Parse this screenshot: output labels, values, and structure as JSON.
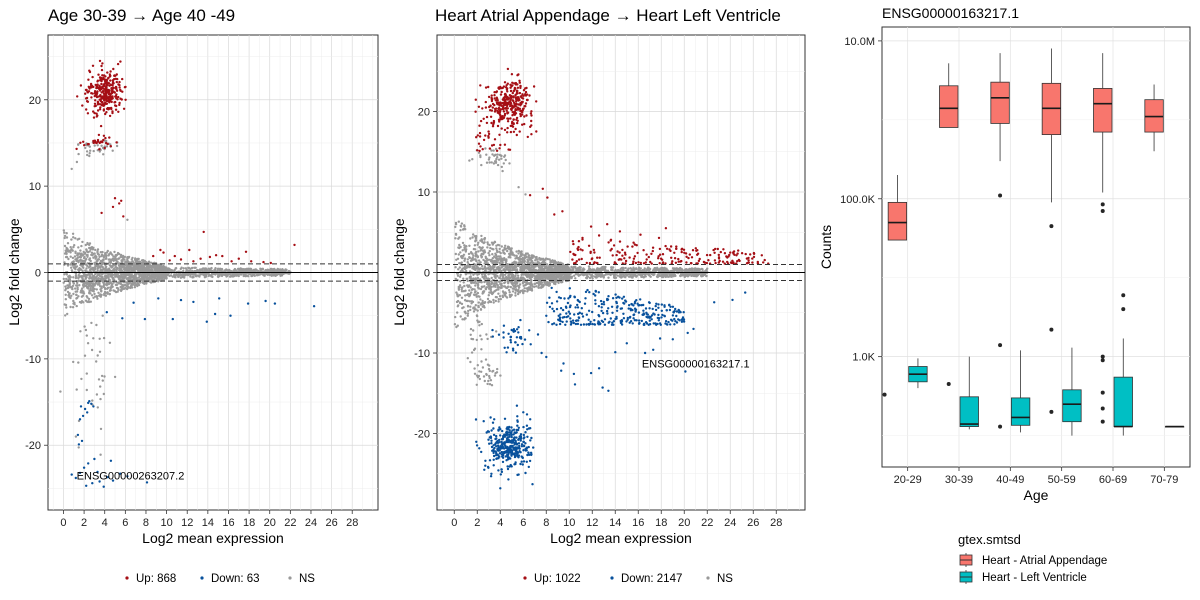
{
  "chart_data": [
    {
      "type": "scatter",
      "title": "Age 30-39 → Age 40 -49",
      "xlabel": "Log2 mean expression",
      "ylabel": "Log2 fold change",
      "xlim": [
        -1.5,
        30.5
      ],
      "ylim": [
        -27.5,
        27.5
      ],
      "xticks": [
        0,
        2,
        4,
        6,
        8,
        10,
        12,
        14,
        16,
        18,
        20,
        22,
        24,
        26,
        28
      ],
      "yticks": [
        -20,
        -10,
        0,
        10,
        20
      ],
      "grid": true,
      "hlines": {
        "solid": 0,
        "dashed": [
          -1,
          1
        ]
      },
      "colors": {
        "up": "#a50f15",
        "down": "#08519c",
        "ns": "#999999"
      },
      "legend": {
        "position": "bottom",
        "labels": [
          "Up: 868",
          "Down: 63",
          "NS"
        ]
      },
      "annotations": [
        {
          "text": "ENSG00000263207.2",
          "x": 6.5,
          "y": -23.5
        }
      ],
      "series": [
        {
          "name": "Up: 868",
          "clusters": [
            {
              "kind": "cluster",
              "cx": 4.0,
              "cy": 20.8,
              "sx": 0.85,
              "sy": 1.3,
              "n": 300
            },
            {
              "kind": "cluster",
              "cx": 3.5,
              "cy": 15.2,
              "sx": 1.0,
              "sy": 0.5,
              "n": 30
            }
          ],
          "points": [
            [
              5.0,
              8.6
            ],
            [
              5.6,
              8.3
            ],
            [
              5.4,
              8.0
            ],
            [
              3.7,
              6.9
            ],
            [
              5.8,
              6.5
            ],
            [
              4.8,
              7.6
            ],
            [
              9.7,
              2.3
            ],
            [
              9.4,
              2.6
            ],
            [
              10.8,
              1.9
            ],
            [
              12.2,
              2.6
            ],
            [
              13.3,
              1.6
            ],
            [
              14.2,
              1.8
            ],
            [
              14.8,
              2.0
            ],
            [
              13.6,
              4.7
            ],
            [
              15.4,
              1.9
            ],
            [
              16.3,
              1.3
            ],
            [
              17.0,
              1.6
            ],
            [
              17.7,
              2.4
            ],
            [
              18.2,
              1.3
            ],
            [
              19.4,
              1.2
            ],
            [
              20.1,
              1.1
            ],
            [
              22.4,
              3.2
            ],
            [
              12.6,
              1.3
            ],
            [
              11.4,
              1.5
            ],
            [
              8.7,
              1.9
            ],
            [
              10.3,
              1.4
            ]
          ]
        },
        {
          "name": "Down: 63",
          "clusters": [],
          "points": [
            [
              1.7,
              -15.5
            ],
            [
              2.1,
              -15.8
            ],
            [
              2.3,
              -16.2
            ],
            [
              2.7,
              -15.2
            ],
            [
              2.9,
              -15.5
            ],
            [
              2.5,
              -14.9
            ],
            [
              1.9,
              -16.6
            ],
            [
              2.4,
              -15.1
            ],
            [
              1.6,
              -17.0
            ],
            [
              1.4,
              -18.8
            ],
            [
              1.8,
              -19.5
            ],
            [
              1.5,
              -19.9
            ],
            [
              0.8,
              -23.4
            ],
            [
              1.2,
              -23.8
            ],
            [
              1.6,
              -23.2
            ],
            [
              2.0,
              -22.6
            ],
            [
              2.4,
              -22.1
            ],
            [
              3.0,
              -21.6
            ],
            [
              3.5,
              -24.2
            ],
            [
              3.9,
              -24.8
            ],
            [
              4.3,
              -23.7
            ],
            [
              4.8,
              -24.1
            ],
            [
              5.5,
              -23.3
            ],
            [
              6.2,
              -23.6
            ],
            [
              2.8,
              -24.4
            ],
            [
              3.3,
              -23.1
            ],
            [
              8.1,
              -24.3
            ],
            [
              4.6,
              -21.8
            ],
            [
              2.2,
              -24.7
            ],
            [
              5.7,
              -5.3
            ],
            [
              7.9,
              -5.4
            ],
            [
              10.6,
              -5.4
            ],
            [
              11.4,
              -3.2
            ],
            [
              12.6,
              -3.4
            ],
            [
              13.9,
              -5.7
            ],
            [
              14.7,
              -4.8
            ],
            [
              16.2,
              -5.0
            ],
            [
              17.9,
              -3.6
            ],
            [
              19.6,
              -3.3
            ],
            [
              20.5,
              -3.6
            ],
            [
              24.3,
              -3.9
            ],
            [
              6.8,
              -3.5
            ],
            [
              9.2,
              -3.0
            ],
            [
              15.1,
              -3.0
            ],
            [
              4.2,
              -4.6
            ]
          ]
        },
        {
          "name": "NS",
          "clusters": [
            {
              "kind": "ma",
              "n": 1500,
              "x0": 0,
              "x1": 10,
              "spread": [
                6.2,
                0.8
              ]
            },
            {
              "kind": "ma",
              "n": 700,
              "x0": 8,
              "x1": 22,
              "spread": [
                0.8,
                0.4
              ]
            },
            {
              "kind": "cluster",
              "cx": 3.5,
              "cy": 14.5,
              "sx": 0.9,
              "sy": 0.5,
              "n": 40
            },
            {
              "kind": "cluster",
              "cx": 2.5,
              "cy": -10.0,
              "sx": 1.0,
              "sy": 5.0,
              "n": 45
            }
          ],
          "points": [
            [
              0.8,
              12.0
            ],
            [
              1.3,
              12.8
            ],
            [
              2.3,
              13.6
            ],
            [
              6.2,
              6.1
            ],
            [
              3.6,
              -21.1
            ]
          ]
        }
      ]
    },
    {
      "type": "scatter",
      "title": "Heart Atrial Appendage → Heart Left Ventricle",
      "xlabel": "Log2 mean expression",
      "ylabel": "Log2 fold change",
      "xlim": [
        -1.5,
        30.5
      ],
      "ylim": [
        -29.5,
        29.5
      ],
      "xticks": [
        0,
        2,
        4,
        6,
        8,
        10,
        12,
        14,
        16,
        18,
        20,
        22,
        24,
        26,
        28
      ],
      "yticks": [
        -20,
        -10,
        0,
        10,
        20
      ],
      "grid": true,
      "hlines": {
        "solid": 0,
        "dashed": [
          -1,
          1
        ]
      },
      "colors": {
        "up": "#a50f15",
        "down": "#08519c",
        "ns": "#999999"
      },
      "legend": {
        "position": "bottom",
        "labels": [
          "Up: 1022",
          "Down: 2147",
          "NS"
        ]
      },
      "annotations": [
        {
          "text": "ENSG00000163217.1",
          "x": 21.0,
          "y": -11.3
        }
      ],
      "series": [
        {
          "name": "Up: 1022",
          "clusters": [
            {
              "kind": "cluster",
              "cx": 4.8,
              "cy": 21.0,
              "sx": 1.0,
              "sy": 1.4,
              "n": 320
            },
            {
              "kind": "cluster",
              "cx": 3.3,
              "cy": 16.5,
              "sx": 0.9,
              "sy": 1.2,
              "n": 30
            },
            {
              "kind": "band",
              "x0": 10,
              "x1": 27,
              "ylo": 1.1,
              "yhi": 4.5,
              "n": 200
            }
          ],
          "points": [
            [
              7.7,
              10.4
            ],
            [
              8.1,
              9.3
            ],
            [
              6.6,
              9.6
            ],
            [
              9.4,
              7.6
            ],
            [
              8.7,
              7.2
            ],
            [
              11.9,
              5.7
            ],
            [
              12.6,
              4.6
            ],
            [
              13.3,
              6.0
            ],
            [
              14.4,
              5.1
            ],
            [
              15.6,
              3.7
            ],
            [
              16.2,
              4.7
            ],
            [
              17.8,
              4.3
            ],
            [
              18.4,
              5.5
            ],
            [
              24.6,
              1.4
            ],
            [
              26.4,
              1.3
            ],
            [
              27.3,
              1.1
            ]
          ]
        },
        {
          "name": "Down: 2147",
          "clusters": [
            {
              "kind": "cluster",
              "cx": 4.8,
              "cy": -21.5,
              "sx": 0.9,
              "sy": 1.5,
              "n": 340
            },
            {
              "kind": "band",
              "x0": 8,
              "x1": 20,
              "ylo": -6.5,
              "yhi": -1.1,
              "n": 300
            },
            {
              "kind": "cluster",
              "cx": 5.3,
              "cy": -8.0,
              "sx": 0.8,
              "sy": 1.0,
              "n": 40
            }
          ],
          "points": [
            [
              7.6,
              -10.0
            ],
            [
              8.0,
              -10.5
            ],
            [
              9.3,
              -12.2
            ],
            [
              9.5,
              -11.3
            ],
            [
              10.5,
              -13.9
            ],
            [
              10.4,
              -12.6
            ],
            [
              11.9,
              -12.5
            ],
            [
              12.6,
              -11.9
            ],
            [
              13.4,
              -14.7
            ],
            [
              12.9,
              -14.3
            ],
            [
              14.0,
              -9.9
            ],
            [
              15.0,
              -8.8
            ],
            [
              16.6,
              -10.0
            ],
            [
              17.3,
              -9.6
            ],
            [
              17.9,
              -8.2
            ],
            [
              19.0,
              -8.3
            ],
            [
              20.3,
              -7.5
            ],
            [
              20.8,
              -7.0
            ],
            [
              22.6,
              -3.7
            ],
            [
              24.2,
              -3.4
            ],
            [
              25.3,
              -2.5
            ],
            [
              6.8,
              -26.3
            ],
            [
              6.2,
              -24.9
            ],
            [
              5.6,
              -25.1
            ],
            [
              4.0,
              -26.8
            ],
            [
              3.2,
              -25.3
            ],
            [
              2.7,
              -24.0
            ],
            [
              6.6,
              -23.4
            ],
            [
              20.1,
              -12.3
            ]
          ]
        },
        {
          "name": "NS",
          "clusters": [
            {
              "kind": "ma",
              "n": 1700,
              "x0": 0,
              "x1": 10,
              "spread": [
                8.0,
                1.0
              ]
            },
            {
              "kind": "ma",
              "n": 800,
              "x0": 8,
              "x1": 22,
              "spread": [
                1.0,
                0.5
              ]
            },
            {
              "kind": "cluster",
              "cx": 3.4,
              "cy": 14.3,
              "sx": 0.8,
              "sy": 0.6,
              "n": 40
            },
            {
              "kind": "cluster",
              "cx": 2.8,
              "cy": -12.8,
              "sx": 0.6,
              "sy": 1.2,
              "n": 35
            },
            {
              "kind": "cluster",
              "cx": 2.2,
              "cy": -8.0,
              "sx": 0.6,
              "sy": 1.4,
              "n": 25
            }
          ],
          "points": [
            [
              5.6,
              10.6
            ],
            [
              6.2,
              9.7
            ],
            [
              4.2,
              12.6
            ]
          ]
        }
      ]
    },
    {
      "type": "box",
      "title": "ENSG00000163217.1",
      "xlabel": "Age",
      "ylabel": "Counts",
      "categories": [
        "20-29",
        "30-39",
        "40-49",
        "50-59",
        "60-69",
        "70-79"
      ],
      "yscale": "log10",
      "ylim": [
        40,
        15000000
      ],
      "yticks": [
        {
          "value": 1000,
          "label": "1.0K"
        },
        {
          "value": 100000,
          "label": "100.0K"
        },
        {
          "value": 10000000,
          "label": "10.0M"
        }
      ],
      "grid": true,
      "legend": {
        "position": "bottom",
        "title": "gtex.smtsd"
      },
      "series": [
        {
          "name": "Heart - Atrial Appendage",
          "color": "#f8766d",
          "boxes": [
            {
              "category": "20-29",
              "min": 30000,
              "q1": 30000,
              "median": 50000,
              "q3": 90000,
              "max": 200000,
              "outliers": []
            },
            {
              "category": "30-39",
              "min": 800000,
              "q1": 800000,
              "median": 1400000,
              "q3": 2700000,
              "max": 5200000,
              "outliers": []
            },
            {
              "category": "40-49",
              "min": 300000,
              "q1": 900000,
              "median": 1900000,
              "q3": 3000000,
              "max": 7000000,
              "outliers": [
                110000,
                1400
              ]
            },
            {
              "category": "50-59",
              "min": 90000,
              "q1": 650000,
              "median": 1400000,
              "q3": 2900000,
              "max": 8000000,
              "outliers": [
                45000,
                2200
              ]
            },
            {
              "category": "60-69",
              "min": 120000,
              "q1": 700000,
              "median": 1600000,
              "q3": 2500000,
              "max": 7000000,
              "outliers": [
                85000,
                70000,
                900,
                350,
                220,
                150,
                1000
              ]
            },
            {
              "category": "70-79",
              "min": 400000,
              "q1": 700000,
              "median": 1100000,
              "q3": 1800000,
              "max": 2800000,
              "outliers": []
            }
          ]
        },
        {
          "name": "Heart - Left Ventricle",
          "color": "#00bfc4",
          "boxes": [
            {
              "category": "20-29",
              "min": 400,
              "q1": 480,
              "median": 600,
              "q3": 750,
              "max": 950,
              "outliers": []
            },
            {
              "category": "30-39",
              "min": 120,
              "q1": 130,
              "median": 140,
              "q3": 310,
              "max": 1000,
              "outliers": []
            },
            {
              "category": "40-49",
              "min": 110,
              "q1": 135,
              "median": 170,
              "q3": 300,
              "max": 1200,
              "outliers": []
            },
            {
              "category": "50-59",
              "min": 100,
              "q1": 150,
              "median": 250,
              "q3": 380,
              "max": 1300,
              "outliers": []
            },
            {
              "category": "60-69",
              "min": 100,
              "q1": 130,
              "median": 130,
              "q3": 550,
              "max": 1700,
              "outliers": [
                4000,
                6000
              ]
            },
            {
              "category": "70-79",
              "min": 130,
              "q1": 130,
              "median": 130,
              "q3": 130,
              "max": 130,
              "outliers": []
            }
          ]
        }
      ],
      "extra_points": [
        {
          "category": "20-29",
          "value": 330,
          "color": "#262626"
        },
        {
          "category": "30-39",
          "value": 450,
          "color": "#262626"
        },
        {
          "category": "40-49",
          "value": 130,
          "color": "#262626"
        },
        {
          "category": "50-59",
          "value": 200,
          "color": "#262626"
        }
      ]
    }
  ]
}
